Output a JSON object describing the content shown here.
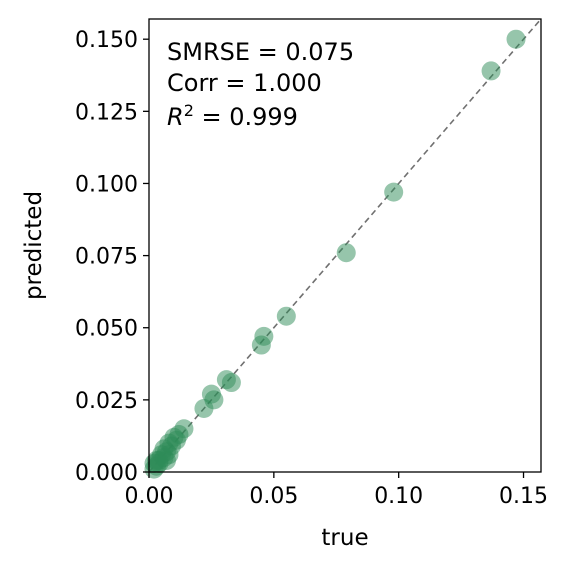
{
  "chart_data": {
    "type": "scatter",
    "xlabel": "true",
    "ylabel": "predicted",
    "xlim": [
      0,
      0.157
    ],
    "ylim": [
      0,
      0.157
    ],
    "xticks": [
      "0.00",
      "0.05",
      "0.10",
      "0.15"
    ],
    "xtick_values": [
      0,
      0.05,
      0.1,
      0.15
    ],
    "yticks": [
      "0.000",
      "0.025",
      "0.050",
      "0.075",
      "0.100",
      "0.125",
      "0.150"
    ],
    "ytick_values": [
      0,
      0.025,
      0.05,
      0.075,
      0.1,
      0.125,
      0.15
    ],
    "reference_line": "y = x (dashed, gray)",
    "annotations": {
      "smrse": "SMRSE = 0.075",
      "corr": "Corr = 1.000",
      "r2_label": "R",
      "r2_sup": "2",
      "r2_value": " = 0.999"
    },
    "marker_color": "#2e8b57",
    "points": [
      {
        "x": 0.147,
        "y": 0.15
      },
      {
        "x": 0.137,
        "y": 0.139
      },
      {
        "x": 0.098,
        "y": 0.097
      },
      {
        "x": 0.079,
        "y": 0.076
      },
      {
        "x": 0.055,
        "y": 0.054
      },
      {
        "x": 0.046,
        "y": 0.047
      },
      {
        "x": 0.045,
        "y": 0.044
      },
      {
        "x": 0.033,
        "y": 0.031
      },
      {
        "x": 0.031,
        "y": 0.032
      },
      {
        "x": 0.026,
        "y": 0.025
      },
      {
        "x": 0.025,
        "y": 0.027
      },
      {
        "x": 0.022,
        "y": 0.022
      },
      {
        "x": 0.014,
        "y": 0.015
      },
      {
        "x": 0.012,
        "y": 0.013
      },
      {
        "x": 0.011,
        "y": 0.011
      },
      {
        "x": 0.01,
        "y": 0.012
      },
      {
        "x": 0.009,
        "y": 0.009
      },
      {
        "x": 0.008,
        "y": 0.01
      },
      {
        "x": 0.007,
        "y": 0.007
      },
      {
        "x": 0.006,
        "y": 0.008
      },
      {
        "x": 0.006,
        "y": 0.005
      },
      {
        "x": 0.005,
        "y": 0.006
      },
      {
        "x": 0.004,
        "y": 0.004
      },
      {
        "x": 0.004,
        "y": 0.003
      },
      {
        "x": 0.003,
        "y": 0.004
      },
      {
        "x": 0.003,
        "y": 0.002
      },
      {
        "x": 0.002,
        "y": 0.003
      },
      {
        "x": 0.002,
        "y": 0.001
      },
      {
        "x": 0.007,
        "y": 0.004
      },
      {
        "x": 0.008,
        "y": 0.006
      }
    ]
  }
}
